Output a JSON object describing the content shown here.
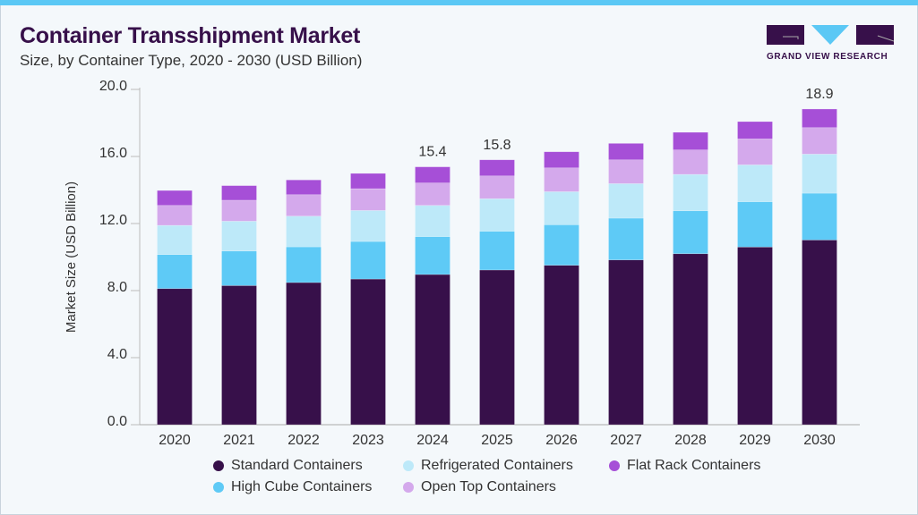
{
  "header": {
    "title": "Container Transshipment Market",
    "subtitle": "Size, by Container Type, 2020 - 2030 (USD Billion)"
  },
  "logo": {
    "text": "GRAND VIEW RESEARCH"
  },
  "colors": {
    "accent": "#5bc8f5",
    "title": "#37104a"
  },
  "chart_data": {
    "type": "bar",
    "stacked": true,
    "title": "",
    "xlabel": "",
    "ylabel": "Market Size (USD Billion)",
    "ylim": [
      0,
      20
    ],
    "yticks": [
      "0.0",
      "4.0",
      "8.0",
      "12.0",
      "16.0",
      "20.0"
    ],
    "categories": [
      "2020",
      "2021",
      "2022",
      "2023",
      "2024",
      "2025",
      "2026",
      "2027",
      "2028",
      "2029",
      "2030"
    ],
    "series": [
      {
        "name": "Standard Containers",
        "color": "#37104a",
        "values": [
          8.12,
          8.3,
          8.48,
          8.69,
          8.96,
          9.23,
          9.51,
          9.83,
          10.2,
          10.6,
          11.02
        ]
      },
      {
        "name": "High Cube Containers",
        "color": "#5ecaf6",
        "values": [
          2.03,
          2.06,
          2.13,
          2.24,
          2.26,
          2.31,
          2.42,
          2.49,
          2.56,
          2.7,
          2.79
        ]
      },
      {
        "name": "Refrigerated Containers",
        "color": "#bde9f9",
        "values": [
          1.74,
          1.78,
          1.83,
          1.85,
          1.86,
          1.94,
          1.97,
          2.06,
          2.17,
          2.2,
          2.33
        ]
      },
      {
        "name": "Open Top Containers",
        "color": "#d4a9ec",
        "values": [
          1.19,
          1.25,
          1.28,
          1.3,
          1.34,
          1.36,
          1.42,
          1.42,
          1.46,
          1.55,
          1.58
        ]
      },
      {
        "name": "Flat Rack Containers",
        "color": "#a64fd7",
        "values": [
          0.89,
          0.87,
          0.88,
          0.91,
          0.96,
          0.96,
          0.96,
          0.98,
          1.05,
          1.03,
          1.11
        ]
      }
    ],
    "data_labels": {
      "2024": "15.4",
      "2025": "15.8",
      "2030": "18.9"
    },
    "grid": false,
    "legend": "bottom"
  },
  "legend": {
    "items": [
      "Standard Containers",
      "Refrigerated Containers",
      "Flat Rack Containers",
      "High Cube Containers",
      "Open Top Containers"
    ]
  }
}
